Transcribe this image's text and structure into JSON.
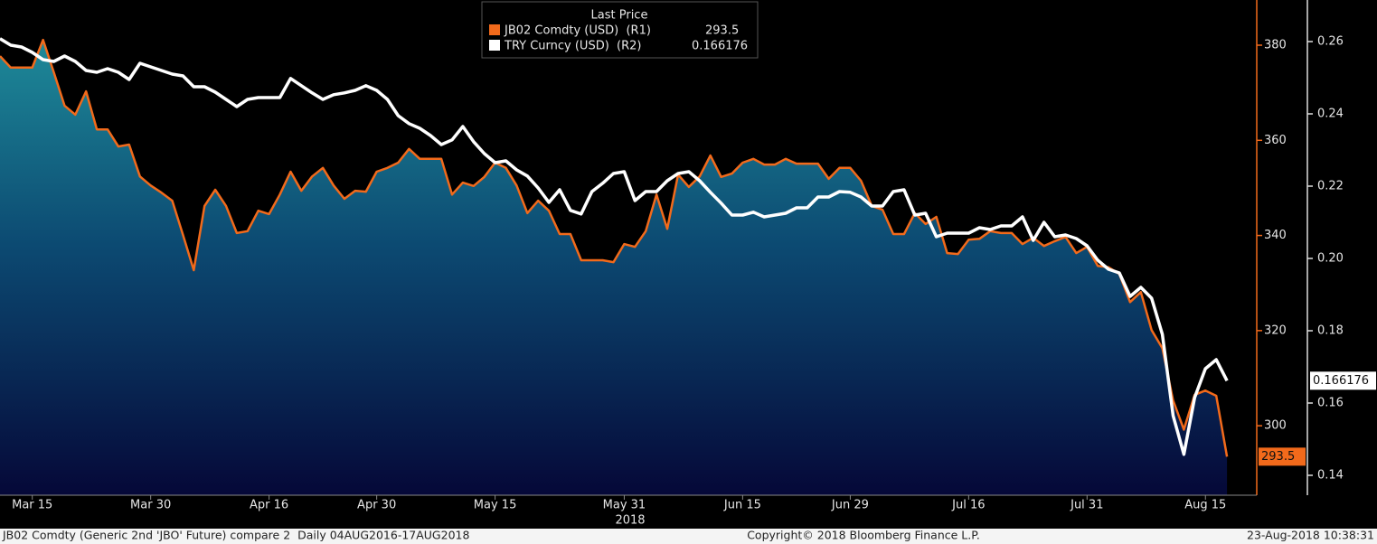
{
  "chart_data": {
    "type": "line",
    "legend_title": "Last Price",
    "categories": [
      null,
      null,
      null,
      "Mar 15",
      null,
      null,
      null,
      null,
      null,
      null,
      null,
      null,
      null,
      null,
      "Mar 30",
      null,
      null,
      null,
      null,
      null,
      null,
      null,
      null,
      null,
      null,
      "Apr 16",
      null,
      null,
      null,
      null,
      null,
      null,
      null,
      null,
      null,
      "Apr 30",
      null,
      null,
      null,
      null,
      null,
      null,
      null,
      null,
      null,
      null,
      "May 15",
      null,
      null,
      null,
      null,
      null,
      null,
      null,
      null,
      null,
      null,
      null,
      "May 31",
      null,
      null,
      null,
      null,
      null,
      null,
      null,
      null,
      null,
      null,
      "Jun 15",
      null,
      null,
      null,
      null,
      null,
      null,
      null,
      null,
      null,
      "Jun 29",
      null,
      null,
      null,
      null,
      null,
      null,
      null,
      null,
      null,
      null,
      "Jul 16",
      null,
      null,
      null,
      null,
      null,
      null,
      null,
      null,
      null,
      null,
      "Jul 31",
      null,
      null,
      null,
      null,
      null,
      null,
      null,
      null,
      null,
      null,
      "Aug 15",
      null,
      null
    ],
    "year_label": "2018",
    "series": [
      {
        "name": "JB02 Comdty (USD)  (R1)",
        "color": "#f26a1b",
        "axis": "y",
        "area": true,
        "values": [
          377.7,
          375.3,
          375.3,
          375.3,
          381.1,
          374.3,
          367.3,
          365.4,
          370.3,
          362.3,
          362.3,
          358.7,
          359.1,
          352.4,
          350.5,
          349.0,
          347.3,
          340.1,
          332.7,
          346.2,
          349.6,
          346.2,
          340.5,
          340.9,
          345.2,
          344.5,
          348.6,
          353.4,
          349.4,
          352.4,
          354.2,
          350.5,
          347.7,
          349.4,
          349.2,
          353.4,
          354.2,
          355.3,
          358.2,
          356.1,
          356.1,
          356.1,
          348.6,
          351.1,
          350.4,
          352.3,
          355.3,
          354.2,
          350.5,
          344.7,
          347.3,
          345.2,
          340.3,
          340.3,
          334.8,
          334.8,
          334.8,
          334.4,
          338.2,
          337.6,
          340.9,
          348.6,
          341.4,
          352.8,
          350.2,
          352.4,
          356.8,
          352.3,
          353.0,
          355.3,
          356.1,
          354.9,
          354.9,
          356.1,
          355.1,
          355.1,
          355.1,
          351.9,
          354.2,
          354.2,
          351.5,
          346.2,
          345.4,
          340.3,
          340.3,
          344.7,
          342.4,
          343.9,
          336.3,
          336.1,
          339.1,
          339.3,
          340.9,
          340.5,
          340.5,
          338.2,
          339.5,
          337.8,
          338.8,
          339.7,
          336.3,
          337.6,
          333.6,
          333.3,
          331.9,
          326.0,
          328.1,
          320.1,
          316.3,
          305.3,
          299.2,
          306.5,
          307.4,
          306.3,
          293.5
        ]
      },
      {
        "name": "TRY Curncy (USD)  (R2)",
        "color": "#ffffff",
        "axis": "y2",
        "area": false,
        "values": [
          0.2608,
          0.259,
          0.2585,
          0.257,
          0.255,
          0.2545,
          0.256,
          0.2545,
          0.252,
          0.2515,
          0.2525,
          0.2515,
          0.2495,
          0.254,
          0.253,
          0.252,
          0.251,
          0.2505,
          0.2475,
          0.2475,
          0.246,
          0.244,
          0.242,
          0.244,
          0.2445,
          0.2445,
          0.2445,
          0.2498,
          0.2478,
          0.2458,
          0.244,
          0.2453,
          0.2458,
          0.2465,
          0.2478,
          0.2465,
          0.244,
          0.2395,
          0.2373,
          0.236,
          0.234,
          0.2315,
          0.2328,
          0.2365,
          0.2323,
          0.229,
          0.2265,
          0.227,
          0.2245,
          0.2228,
          0.2195,
          0.2155,
          0.219,
          0.2133,
          0.2123,
          0.2185,
          0.2208,
          0.2235,
          0.224,
          0.216,
          0.2185,
          0.2185,
          0.2215,
          0.2235,
          0.224,
          0.2215,
          0.2183,
          0.2153,
          0.212,
          0.212,
          0.2128,
          0.2115,
          0.212,
          0.2125,
          0.214,
          0.214,
          0.217,
          0.217,
          0.2185,
          0.2183,
          0.217,
          0.2145,
          0.2145,
          0.2185,
          0.219,
          0.212,
          0.2125,
          0.206,
          0.207,
          0.207,
          0.207,
          0.2085,
          0.208,
          0.209,
          0.209,
          0.2115,
          0.205,
          0.21,
          0.206,
          0.2065,
          0.2055,
          0.2035,
          0.1995,
          0.197,
          0.196,
          0.1895,
          0.192,
          0.189,
          0.179,
          0.1565,
          0.1458,
          0.1615,
          0.1695,
          0.172,
          0.166176
        ]
      }
    ],
    "ylim": [
      285.4,
      389.5
    ],
    "yticks": [
      300,
      320,
      340,
      360,
      380
    ],
    "y2lim": [
      0.1345,
      0.2715
    ],
    "y2ticks": [
      0.14,
      0.16,
      0.18,
      {
        "value": 0.2,
        "label": "0.20"
      },
      0.22,
      0.24,
      0.26
    ],
    "grid": false,
    "footnote_left": "JB02 Comdty (Generic 2nd 'JBO' Future) compare 2  Daily 04AUG2016-17AUG2018",
    "footnote_center": "Copyright© 2018 Bloomberg Finance L.P.",
    "footnote_right": "23-Aug-2018 10:38:31"
  }
}
